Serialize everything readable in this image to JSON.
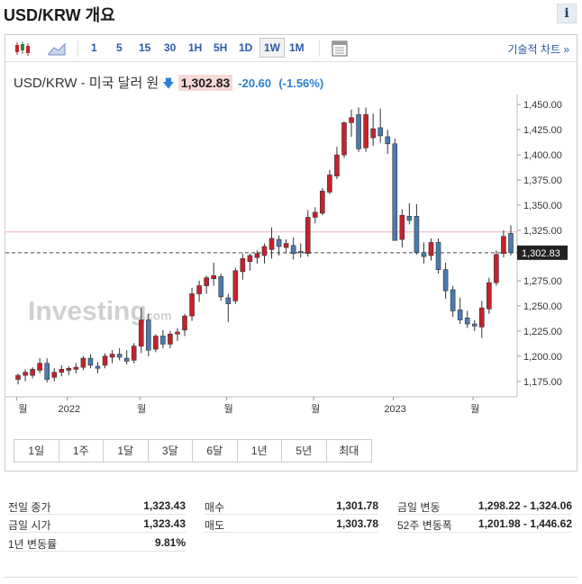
{
  "page": {
    "title": "USD/KRW 개요",
    "info_label": "i"
  },
  "toolbar": {
    "timeframes": [
      "1",
      "5",
      "15",
      "30",
      "1H",
      "5H",
      "1D",
      "1W",
      "1M"
    ],
    "active_timeframe": "1W",
    "technical_link": "기술적 차트 »"
  },
  "quote": {
    "name": "USD/KRW - 미국 달러 원",
    "arrow": "🡇",
    "price": "1,302.83",
    "change": "-20.60",
    "change_pct": "(-1.56%)"
  },
  "chart_data": {
    "type": "candlestick",
    "title": "",
    "xlabel": "",
    "ylabel": "",
    "y_range": [
      1165,
      1460
    ],
    "y_ticks": [
      "1,450.00",
      "1,425.00",
      "1,400.00",
      "1,375.00",
      "1,350.00",
      "1,325.00",
      "1,300.00",
      "1,275.00",
      "1,250.00",
      "1,225.00",
      "1,200.00",
      "1,175.00"
    ],
    "x_tick_labels": [
      "월",
      "2022",
      "월",
      "월",
      "월",
      "2023",
      "월"
    ],
    "current_price": 1302.83,
    "current_price_label": "1,302.83",
    "previous_close_line": 1323.43,
    "watermark": "Investing",
    "watermark_suffix": ".com",
    "up_color": "#c8212c",
    "down_color": "#4a7bb3",
    "candles": [
      {
        "o": 1177,
        "h": 1183,
        "l": 1172,
        "c": 1181
      },
      {
        "o": 1181,
        "h": 1187,
        "l": 1175,
        "c": 1184
      },
      {
        "o": 1181,
        "h": 1189,
        "l": 1178,
        "c": 1187
      },
      {
        "o": 1186,
        "h": 1198,
        "l": 1183,
        "c": 1193
      },
      {
        "o": 1193,
        "h": 1198,
        "l": 1174,
        "c": 1177
      },
      {
        "o": 1179,
        "h": 1188,
        "l": 1175,
        "c": 1184
      },
      {
        "o": 1184,
        "h": 1191,
        "l": 1180,
        "c": 1187
      },
      {
        "o": 1186,
        "h": 1190,
        "l": 1181,
        "c": 1188
      },
      {
        "o": 1187,
        "h": 1193,
        "l": 1183,
        "c": 1189
      },
      {
        "o": 1189,
        "h": 1200,
        "l": 1186,
        "c": 1198
      },
      {
        "o": 1198,
        "h": 1202,
        "l": 1188,
        "c": 1191
      },
      {
        "o": 1190,
        "h": 1194,
        "l": 1183,
        "c": 1188
      },
      {
        "o": 1191,
        "h": 1203,
        "l": 1188,
        "c": 1200
      },
      {
        "o": 1199,
        "h": 1206,
        "l": 1193,
        "c": 1202
      },
      {
        "o": 1202,
        "h": 1208,
        "l": 1196,
        "c": 1199
      },
      {
        "o": 1198,
        "h": 1206,
        "l": 1192,
        "c": 1195
      },
      {
        "o": 1196,
        "h": 1213,
        "l": 1193,
        "c": 1210
      },
      {
        "o": 1210,
        "h": 1248,
        "l": 1203,
        "c": 1236
      },
      {
        "o": 1236,
        "h": 1242,
        "l": 1200,
        "c": 1206
      },
      {
        "o": 1207,
        "h": 1222,
        "l": 1204,
        "c": 1220
      },
      {
        "o": 1220,
        "h": 1226,
        "l": 1208,
        "c": 1212
      },
      {
        "o": 1212,
        "h": 1225,
        "l": 1208,
        "c": 1222
      },
      {
        "o": 1222,
        "h": 1228,
        "l": 1215,
        "c": 1224
      },
      {
        "o": 1226,
        "h": 1242,
        "l": 1220,
        "c": 1240
      },
      {
        "o": 1240,
        "h": 1268,
        "l": 1235,
        "c": 1262
      },
      {
        "o": 1262,
        "h": 1275,
        "l": 1254,
        "c": 1270
      },
      {
        "o": 1270,
        "h": 1280,
        "l": 1262,
        "c": 1278
      },
      {
        "o": 1277,
        "h": 1293,
        "l": 1270,
        "c": 1280
      },
      {
        "o": 1279,
        "h": 1282,
        "l": 1255,
        "c": 1259
      },
      {
        "o": 1258,
        "h": 1262,
        "l": 1234,
        "c": 1252
      },
      {
        "o": 1255,
        "h": 1288,
        "l": 1252,
        "c": 1285
      },
      {
        "o": 1284,
        "h": 1302,
        "l": 1276,
        "c": 1297
      },
      {
        "o": 1294,
        "h": 1302,
        "l": 1285,
        "c": 1300
      },
      {
        "o": 1298,
        "h": 1305,
        "l": 1292,
        "c": 1302
      },
      {
        "o": 1300,
        "h": 1312,
        "l": 1292,
        "c": 1309
      },
      {
        "o": 1306,
        "h": 1328,
        "l": 1297,
        "c": 1317
      },
      {
        "o": 1316,
        "h": 1320,
        "l": 1300,
        "c": 1309
      },
      {
        "o": 1308,
        "h": 1316,
        "l": 1302,
        "c": 1312
      },
      {
        "o": 1310,
        "h": 1318,
        "l": 1296,
        "c": 1302
      },
      {
        "o": 1304,
        "h": 1312,
        "l": 1298,
        "c": 1303
      },
      {
        "o": 1302,
        "h": 1345,
        "l": 1299,
        "c": 1338
      },
      {
        "o": 1338,
        "h": 1348,
        "l": 1332,
        "c": 1343
      },
      {
        "o": 1342,
        "h": 1367,
        "l": 1340,
        "c": 1364
      },
      {
        "o": 1363,
        "h": 1385,
        "l": 1361,
        "c": 1380
      },
      {
        "o": 1379,
        "h": 1408,
        "l": 1376,
        "c": 1400
      },
      {
        "o": 1400,
        "h": 1433,
        "l": 1397,
        "c": 1432
      },
      {
        "o": 1432,
        "h": 1445,
        "l": 1418,
        "c": 1437
      },
      {
        "o": 1440,
        "h": 1447,
        "l": 1403,
        "c": 1406
      },
      {
        "o": 1407,
        "h": 1447,
        "l": 1403,
        "c": 1440
      },
      {
        "o": 1417,
        "h": 1441,
        "l": 1409,
        "c": 1426
      },
      {
        "o": 1427,
        "h": 1446,
        "l": 1412,
        "c": 1419
      },
      {
        "o": 1418,
        "h": 1425,
        "l": 1401,
        "c": 1411
      },
      {
        "o": 1411,
        "h": 1416,
        "l": 1315,
        "c": 1315
      },
      {
        "o": 1316,
        "h": 1346,
        "l": 1308,
        "c": 1340
      },
      {
        "o": 1339,
        "h": 1352,
        "l": 1331,
        "c": 1335
      },
      {
        "o": 1339,
        "h": 1351,
        "l": 1301,
        "c": 1303
      },
      {
        "o": 1303,
        "h": 1313,
        "l": 1292,
        "c": 1299
      },
      {
        "o": 1300,
        "h": 1317,
        "l": 1295,
        "c": 1313
      },
      {
        "o": 1313,
        "h": 1317,
        "l": 1282,
        "c": 1286
      },
      {
        "o": 1286,
        "h": 1293,
        "l": 1257,
        "c": 1265
      },
      {
        "o": 1266,
        "h": 1270,
        "l": 1239,
        "c": 1245
      },
      {
        "o": 1246,
        "h": 1258,
        "l": 1232,
        "c": 1236
      },
      {
        "o": 1238,
        "h": 1245,
        "l": 1228,
        "c": 1232
      },
      {
        "o": 1232,
        "h": 1236,
        "l": 1225,
        "c": 1230
      },
      {
        "o": 1229,
        "h": 1255,
        "l": 1218,
        "c": 1248
      },
      {
        "o": 1247,
        "h": 1278,
        "l": 1242,
        "c": 1273
      },
      {
        "o": 1273,
        "h": 1305,
        "l": 1270,
        "c": 1301
      },
      {
        "o": 1302,
        "h": 1325,
        "l": 1298,
        "c": 1319
      },
      {
        "o": 1322,
        "h": 1330,
        "l": 1300,
        "c": 1303
      }
    ]
  },
  "ranges": [
    "1일",
    "1주",
    "1달",
    "3달",
    "6달",
    "1년",
    "5년",
    "최대"
  ],
  "stats": [
    {
      "label": "전일 종가",
      "value": "1,323.43"
    },
    {
      "label": "금일 시가",
      "value": "1,323.43"
    },
    {
      "label": "1년 변동률",
      "value": "9.81%"
    },
    {
      "label": "매수",
      "value": "1,301.78"
    },
    {
      "label": "매도",
      "value": "1,303.78"
    },
    {
      "label": "금일 변동",
      "value": "1,298.22 - 1,324.06"
    },
    {
      "label": "52주 변동폭",
      "value": "1,201.98 - 1,446.62"
    }
  ]
}
